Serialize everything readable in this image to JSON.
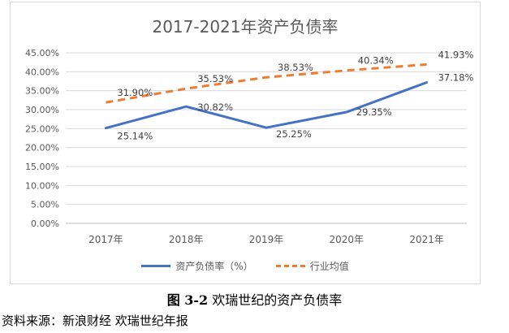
{
  "chart_data": {
    "type": "line",
    "title": "2017-2021年资产负债率",
    "categories": [
      "2017年",
      "2018年",
      "2019年",
      "2020年",
      "2021年"
    ],
    "y_ticks": [
      "0.00%",
      "5.00%",
      "10.00%",
      "15.00%",
      "20.00%",
      "25.00%",
      "30.00%",
      "35.00%",
      "40.00%",
      "45.00%"
    ],
    "ylim": [
      0,
      45
    ],
    "grid": true,
    "legend_position": "bottom",
    "series": [
      {
        "name": "资产负债率（%）",
        "values": [
          25.14,
          30.82,
          25.25,
          29.35,
          37.18
        ],
        "labels": [
          "25.14%",
          "30.82%",
          "25.25%",
          "29.35%",
          "37.18%"
        ],
        "color": "#4472c4",
        "style": "solid"
      },
      {
        "name": "行业均值",
        "values": [
          31.9,
          35.53,
          38.53,
          40.34,
          41.93
        ],
        "labels": [
          "31.90%",
          "35.53%",
          "38.53%",
          "40.34%",
          "41.93%"
        ],
        "color": "#ed7d31",
        "style": "dashed"
      }
    ]
  },
  "caption": {
    "figure_number": "图 3-2",
    "text": "欢瑞世纪的资产负债率"
  },
  "source_text": "资料来源：新浪财经  欢瑞世纪年报"
}
